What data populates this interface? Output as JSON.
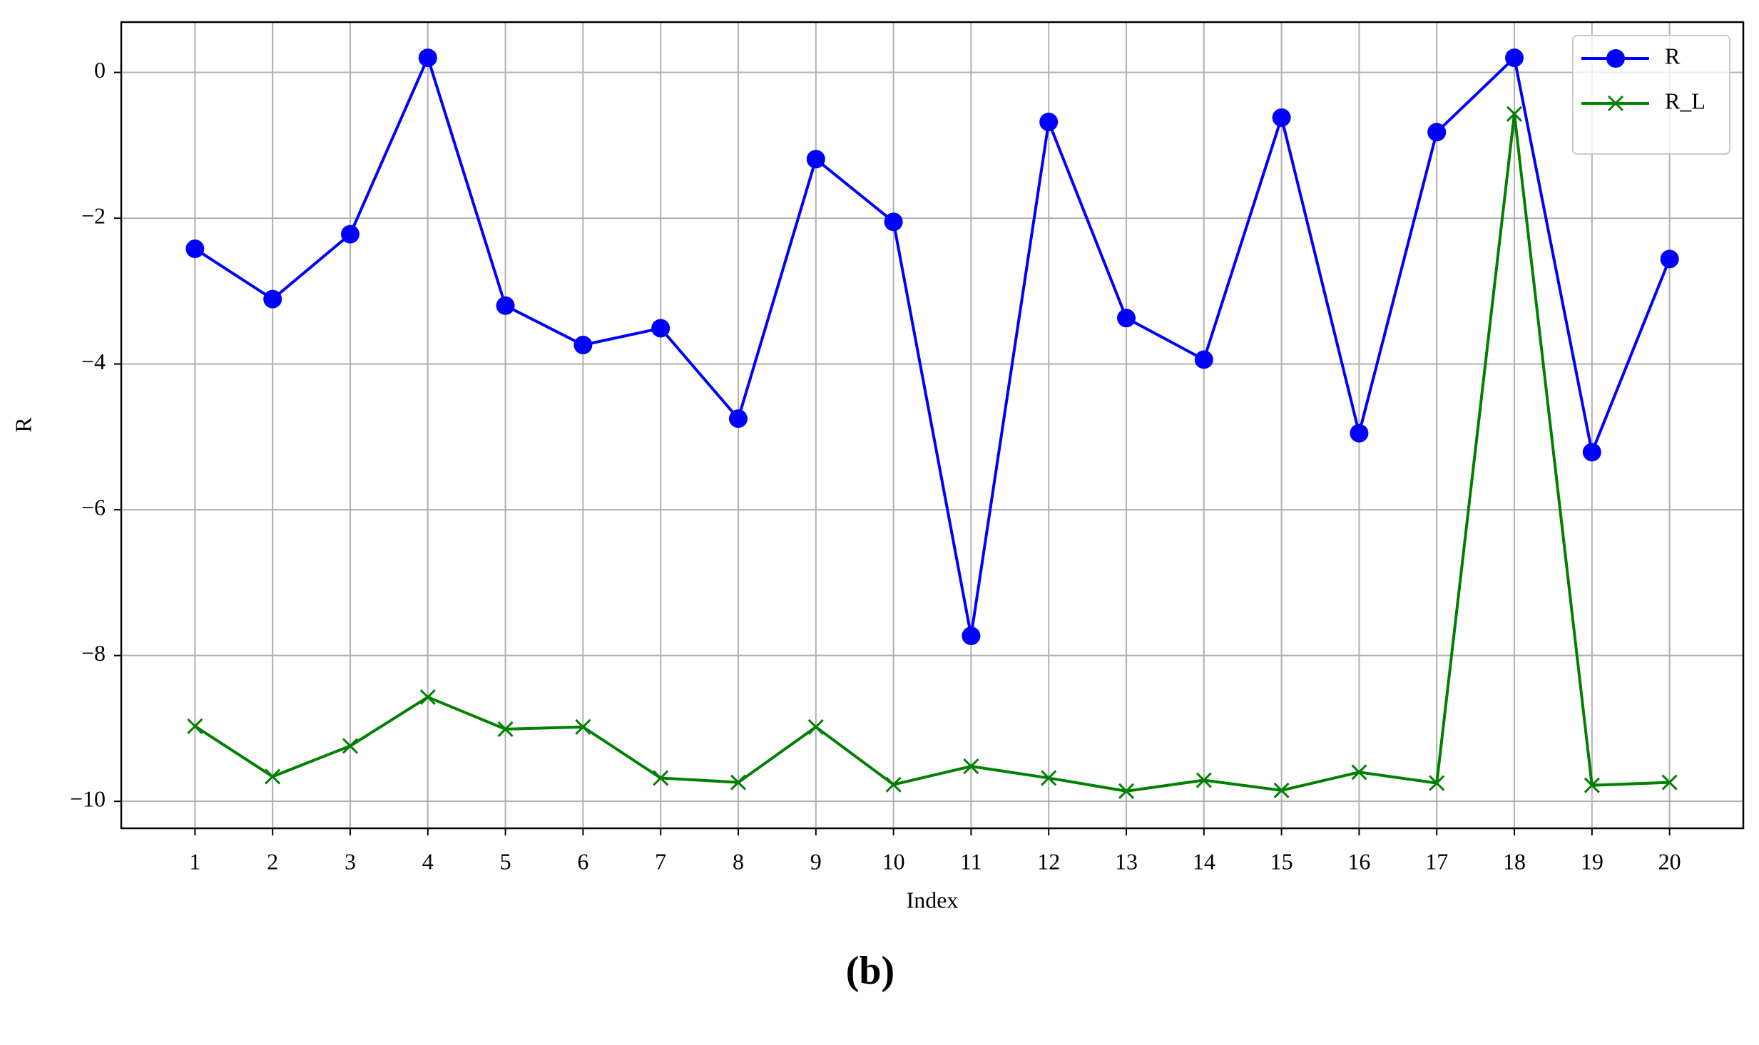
{
  "chart_data": {
    "type": "line",
    "x": [
      1,
      2,
      3,
      4,
      5,
      6,
      7,
      8,
      9,
      10,
      11,
      12,
      13,
      14,
      15,
      16,
      17,
      18,
      19,
      20
    ],
    "series": [
      {
        "name": "R",
        "color": "#0000ff",
        "marker": "o",
        "values": [
          -2.42,
          -3.11,
          -2.22,
          0.2,
          -3.2,
          -3.74,
          -3.51,
          -4.75,
          -1.19,
          -2.05,
          -7.73,
          -0.68,
          -3.37,
          -3.94,
          -0.62,
          -4.95,
          -0.82,
          0.2,
          -5.21,
          -2.56
        ]
      },
      {
        "name": "R_L",
        "color": "#008000",
        "marker": "x",
        "values": [
          -8.97,
          -9.66,
          -9.24,
          -8.57,
          -9.01,
          -8.98,
          -9.68,
          -9.74,
          -8.98,
          -9.77,
          -9.52,
          -9.68,
          -9.86,
          -9.71,
          -9.85,
          -9.6,
          -9.75,
          -0.57,
          -9.78,
          -9.74
        ]
      }
    ],
    "xlabel": "Index",
    "ylabel": "R",
    "caption": "(b)",
    "xlim": [
      0.05,
      20.95
    ],
    "ylim": [
      -10.37,
      0.69
    ],
    "xticks": [
      1,
      2,
      3,
      4,
      5,
      6,
      7,
      8,
      9,
      10,
      11,
      12,
      13,
      14,
      15,
      16,
      17,
      18,
      19,
      20
    ],
    "yticks": [
      {
        "value": -10,
        "label": "−10"
      },
      {
        "value": -8,
        "label": "−8"
      },
      {
        "value": -6,
        "label": "−6"
      },
      {
        "value": -4,
        "label": "−4"
      },
      {
        "value": -2,
        "label": "−2"
      },
      0
    ],
    "grid": true,
    "legend": "upper right"
  }
}
